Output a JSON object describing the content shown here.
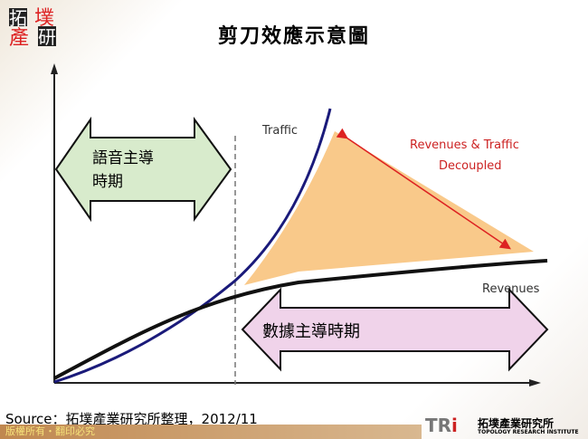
{
  "logo": {
    "text": "拓墣產研"
  },
  "title": "剪刀效應示意圖",
  "diagram": {
    "left_arrow_label_line1": "語音主導",
    "left_arrow_label_line2": "時期",
    "bottom_arrow_label": "數據主導時期",
    "traffic_label": "Traffic",
    "revenues_label": "Revenues",
    "decoupled_label_line1": "Revenues & Traffic",
    "decoupled_label_line2": "Decoupled",
    "colors": {
      "traffic": "#1a1a7a",
      "revenues": "#111111",
      "gap": "#f9c98a",
      "voice_arrow": "#d8ebcc",
      "data_arrow": "#f0d3ea",
      "gap_arrow": "#d22222"
    }
  },
  "source": "Source：拓墣產業研究所整理，2012/11",
  "footer": "版權所有・翻印必究",
  "brand": {
    "mark": "TR",
    "mark_i": "i",
    "name": "拓墣產業研究所",
    "name_en": "TOPOLOGY RESEARCH INSTITUTE"
  }
}
